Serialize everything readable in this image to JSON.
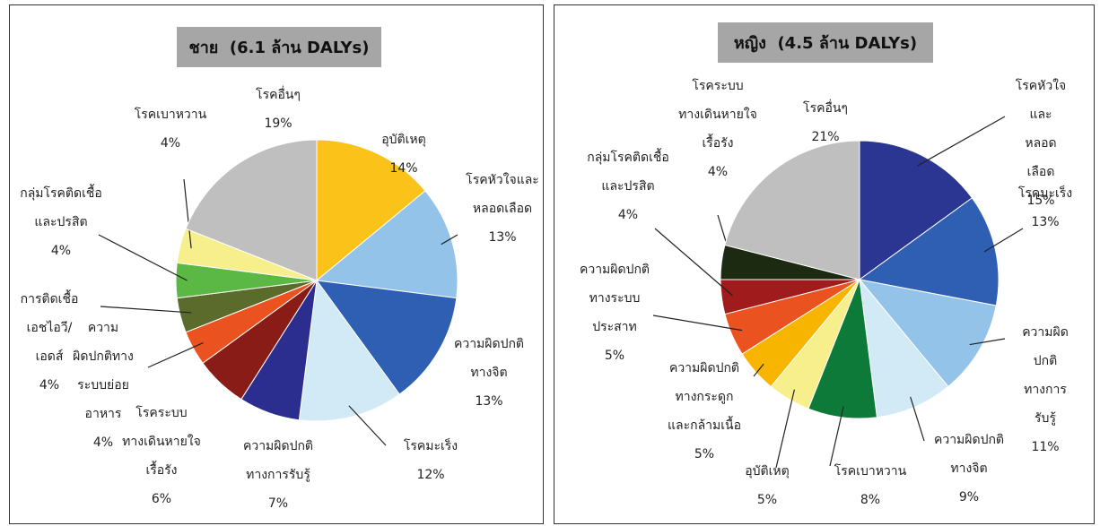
{
  "chart_data": [
    {
      "type": "pie",
      "title": "ชาย  (6.1 ล้าน DALYs)",
      "categories": [
        "อุบัติเหตุ",
        "โรคหัวใจและ\nหลอดเลือด",
        "ความผิดปกติ\nทางจิต",
        "โรคมะเร็ง",
        "ความผิดปกติ\nทางการรับรู้",
        "โรคระบบ\nทางเดินหายใจ\nเรื้อรัง",
        "ความ\nผิดปกติทาง\nระบบย่อย\nอาหาร",
        "การติดเชื้อ\nเอชไอวี/\nเอดส์",
        "กลุ่มโรคติดเชื้อ\nและปรสิต",
        "โรคเบาหวาน",
        "โรคอื่นๆ"
      ],
      "values": [
        14,
        13,
        13,
        12,
        7,
        6,
        4,
        4,
        4,
        4,
        19
      ],
      "value_labels": [
        "14%",
        "13%",
        "13%",
        "12%",
        "7%",
        "6%",
        "4%",
        "4%",
        "4%",
        "4%",
        "19%"
      ],
      "colors": [
        "#fbc31a",
        "#94c3ea",
        "#2f5fb3",
        "#d2e9f6",
        "#2b2e8e",
        "#8a1c17",
        "#ea531f",
        "#5a6b2c",
        "#5cb845",
        "#f6ef8c",
        "#bfbfbf"
      ]
    },
    {
      "type": "pie",
      "title": "หญิง  (4.5 ล้าน DALYs)",
      "categories": [
        "โรคหัวใจและ\nหลอดเลือด",
        "โรคมะเร็ง",
        "ความผิดปกติ\nทางการรับรู้",
        "ความผิดปกติ\nทางจิต",
        "โรคเบาหวาน",
        "อุบัติเหตุ",
        "ความผิดปกติ\nทางกระดูก\nและกล้ามเนื้อ",
        "ความผิดปกติ\nทางระบบ\nประสาท",
        "กลุ่มโรคติดเชื้อ\nและปรสิต",
        "โรคระบบ\nทางเดินหายใจ\nเรื้อรัง",
        "โรคอื่นๆ"
      ],
      "values": [
        15,
        13,
        11,
        9,
        8,
        5,
        5,
        5,
        4,
        4,
        21
      ],
      "value_labels": [
        "15%",
        "13%",
        "11%",
        "9%",
        "8%",
        "5%",
        "5%",
        "5%",
        "4%",
        "4%",
        "21%"
      ],
      "colors": [
        "#2b3592",
        "#2f5fb3",
        "#94c3ea",
        "#d2e9f6",
        "#0e7a3a",
        "#f6ef8c",
        "#f7b500",
        "#ea531f",
        "#a01c1c",
        "#1b2a10",
        "#bfbfbf"
      ]
    }
  ]
}
